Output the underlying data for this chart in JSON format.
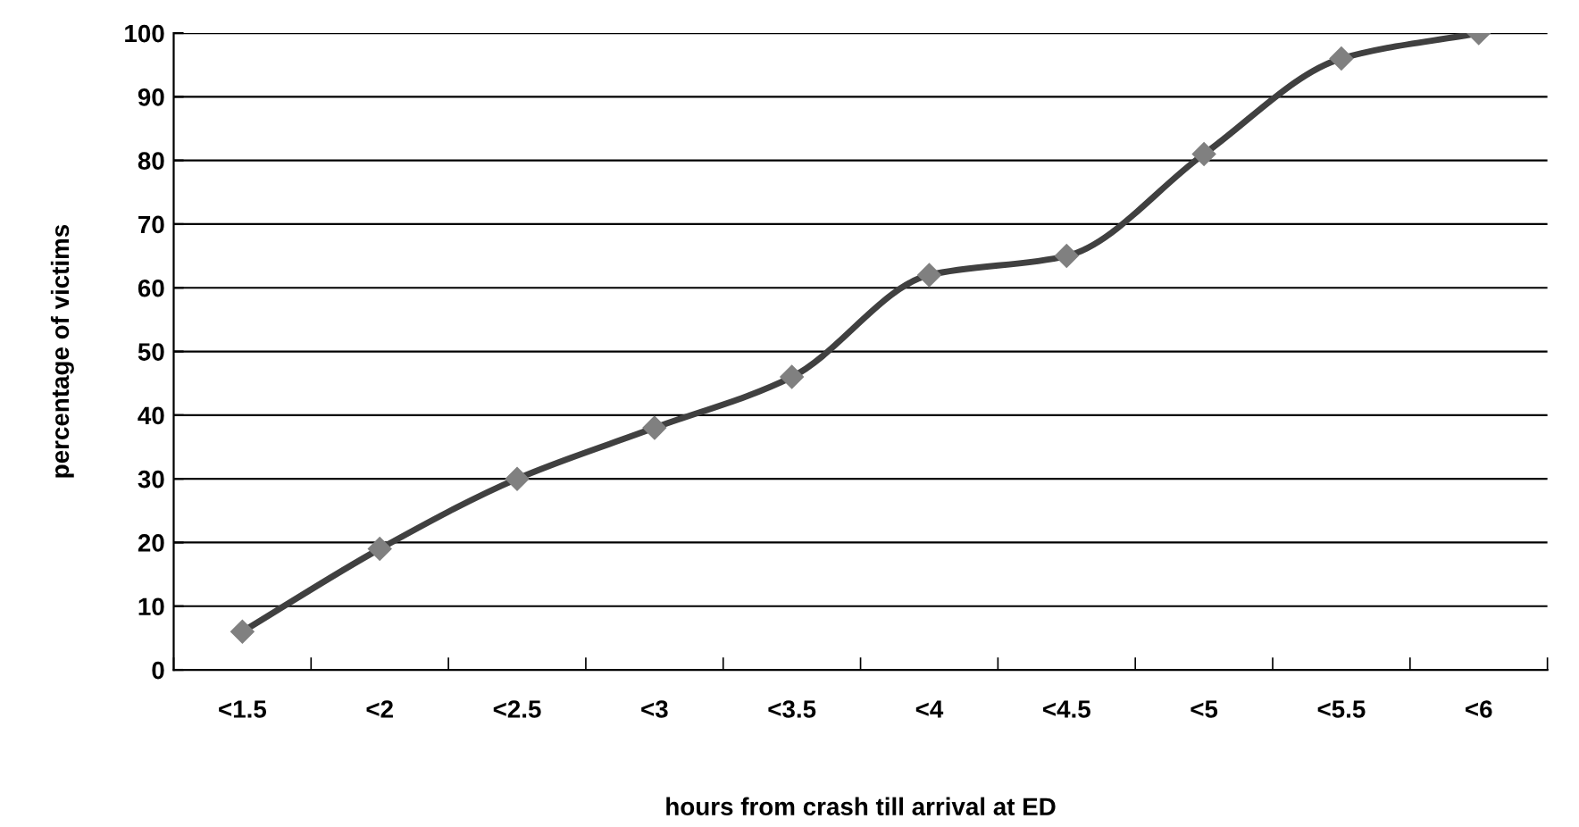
{
  "chart_data": {
    "type": "line",
    "xlabel": "hours from crash till arrival at ED",
    "ylabel": "percentage of victims",
    "categories": [
      "<1.5",
      "<2",
      "<2.5",
      "<3",
      "<3.5",
      "<4",
      "<4.5",
      "<5",
      "<5.5",
      "<6"
    ],
    "series": [
      {
        "color": "#404040",
        "colors": [
          "#808080",
          "#808080",
          "#808080",
          "#808080",
          "#808080",
          "#808080",
          "#808080",
          "#808080",
          "#808080",
          "#808080"
        ],
        "values": [
          6,
          19,
          30,
          38,
          46,
          62,
          65,
          81,
          96,
          100
        ]
      }
    ],
    "ylim": [
      0,
      100
    ],
    "yticks": [
      0,
      10,
      20,
      30,
      40,
      50,
      60,
      70,
      80,
      90,
      100
    ],
    "grid": "y",
    "marker": "diamond",
    "line_style": "solid",
    "legend": false
  }
}
